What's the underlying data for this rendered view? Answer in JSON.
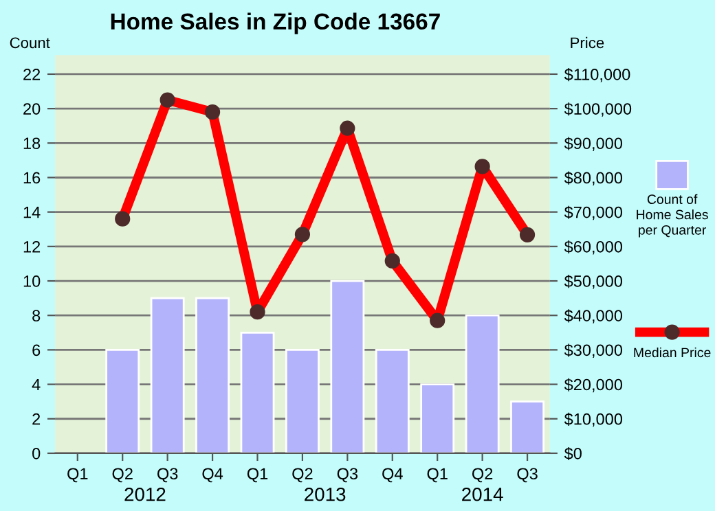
{
  "chart_data": {
    "type": "bar",
    "title": "Home Sales in Zip Code 13667",
    "ylabel": "Count",
    "y2label": "Price",
    "categories": [
      "Q1",
      "Q2",
      "Q3",
      "Q4",
      "Q1",
      "Q2",
      "Q3",
      "Q4",
      "Q1",
      "Q2",
      "Q3"
    ],
    "annotations": [
      "2012",
      "2013",
      "2014"
    ],
    "series": [
      {
        "name": "Count of\nHome Sales\nper Quarter",
        "color": "#b3b3fb",
        "values": [
          null,
          6,
          9,
          9,
          7,
          6,
          10,
          6,
          4,
          8,
          3
        ]
      },
      {
        "name": "Median Price",
        "type": "line",
        "axis": "y2",
        "color": "#ff0000",
        "values": [
          null,
          68000,
          102500,
          99000,
          41000,
          63500,
          94300,
          55800,
          38500,
          83200,
          63400
        ]
      }
    ],
    "marker": "circle",
    "line_style": "solid",
    "ylim": [
      0,
      23.1
    ],
    "yticks": [
      0,
      2,
      4,
      6,
      8,
      10,
      12,
      14,
      16,
      18,
      20,
      22
    ],
    "y2lim": [
      0,
      115500
    ],
    "y2ticks": [
      {
        "value": 0,
        "label": "$0"
      },
      {
        "value": 10000,
        "label": "$10,000"
      },
      {
        "value": 20000,
        "label": "$20,000"
      },
      {
        "value": 30000,
        "label": "$30,000"
      },
      {
        "value": 40000,
        "label": "$40,000"
      },
      {
        "value": 50000,
        "label": "$50,000"
      },
      {
        "value": 60000,
        "label": "$60,000"
      },
      {
        "value": 70000,
        "label": "$70,000"
      },
      {
        "value": 80000,
        "label": "$80,000"
      },
      {
        "value": 90000,
        "label": "$90,000"
      },
      {
        "value": 100000,
        "label": "$100,000"
      },
      {
        "value": 110000,
        "label": "$110,000"
      }
    ],
    "grid": "y",
    "legend": "right"
  }
}
